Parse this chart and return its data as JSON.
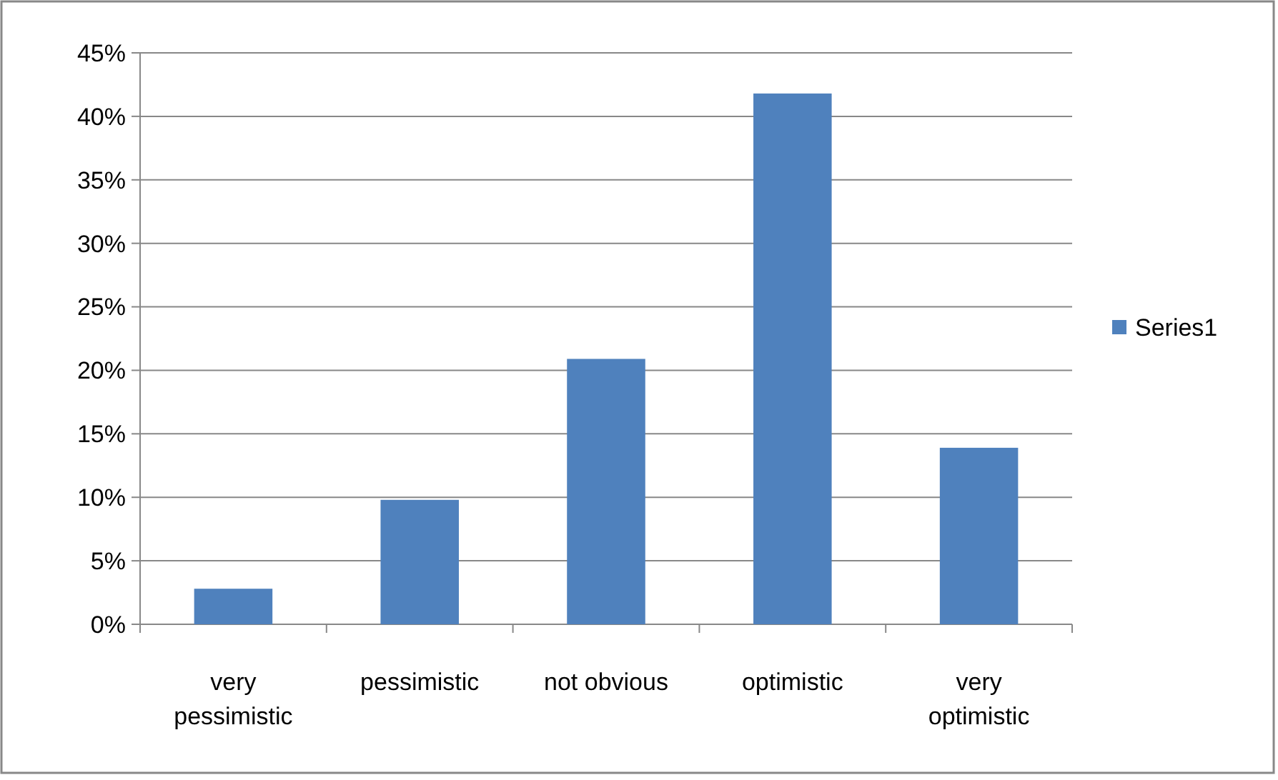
{
  "chart_data": {
    "type": "bar",
    "categories": [
      "very pessimistic",
      "pessimistic",
      "not obvious",
      "optimistic",
      "very optimistic"
    ],
    "series": [
      {
        "name": "Series1",
        "color": "#4f81bd",
        "values": [
          2.8,
          9.8,
          20.9,
          41.8,
          13.9
        ]
      }
    ],
    "ylim": [
      0,
      45
    ],
    "yticks": [
      {
        "value": 0,
        "label": "0%"
      },
      {
        "value": 5,
        "label": "5%"
      },
      {
        "value": 10,
        "label": "10%"
      },
      {
        "value": 15,
        "label": "15%"
      },
      {
        "value": 20,
        "label": "20%"
      },
      {
        "value": 25,
        "label": "25%"
      },
      {
        "value": 30,
        "label": "30%"
      },
      {
        "value": 35,
        "label": "35%"
      },
      {
        "value": 40,
        "label": "40%"
      },
      {
        "value": 45,
        "label": "45%"
      }
    ],
    "grid": "y",
    "legend": "right"
  }
}
